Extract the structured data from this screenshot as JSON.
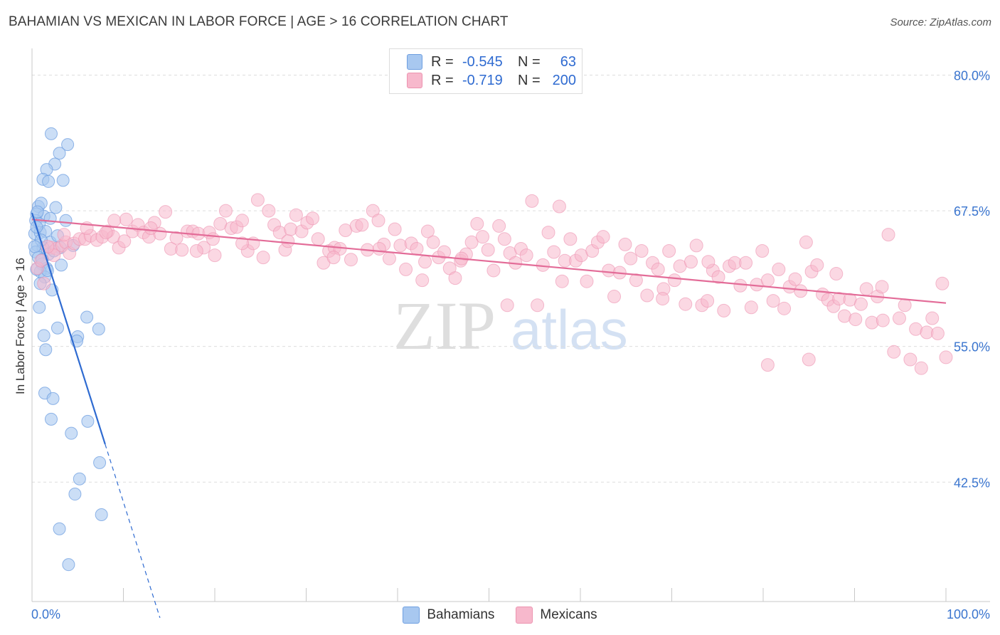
{
  "title": "BAHAMIAN VS MEXICAN IN LABOR FORCE | AGE > 16 CORRELATION CHART",
  "source": "Source: ZipAtlas.com",
  "watermark": {
    "zip": "ZIP",
    "atlas": "atlas"
  },
  "legend": {
    "rows": [
      {
        "r_label": "R =",
        "r_value": "-0.545",
        "n_label": "N =",
        "n_value": "63",
        "color": "#a8c8f0"
      },
      {
        "r_label": "R =",
        "r_value": "-0.719",
        "n_label": "N =",
        "n_value": "200",
        "color": "#f7b8cc"
      }
    ]
  },
  "bottom_legend": {
    "bahamians": "Bahamians",
    "mexicans": "Mexicans"
  },
  "colors": {
    "blue_fill": "#a8c8f0",
    "blue_stroke": "#6f9fe0",
    "blue_line": "#2f6bd1",
    "pink_fill": "#f7b8cc",
    "pink_stroke": "#ec93b0",
    "pink_line": "#e36c98",
    "tick_text": "#3a75cf"
  },
  "chart_data": {
    "type": "scatter",
    "title": "BAHAMIAN VS MEXICAN IN LABOR FORCE | AGE > 16 CORRELATION CHART",
    "xlabel": "",
    "ylabel": "In Labor Force | Age > 16",
    "xlim": [
      0,
      100
    ],
    "ylim": [
      31.5,
      82
    ],
    "x_tick_labels": [
      "0.0%",
      "100.0%"
    ],
    "y_ticks": [
      42.5,
      55.0,
      67.5,
      80.0
    ],
    "y_tick_labels": [
      "42.5%",
      "55.0%",
      "67.5%",
      "80.0%"
    ],
    "grid": "horizontal dashed",
    "legend_position": "top-center",
    "series": [
      {
        "name": "Bahamians",
        "R": -0.545,
        "N": 63,
        "points": [
          [
            2.1,
            74.6
          ],
          [
            3.9,
            73.6
          ],
          [
            3.0,
            72.8
          ],
          [
            2.5,
            71.8
          ],
          [
            1.6,
            71.3
          ],
          [
            1.2,
            70.4
          ],
          [
            1.8,
            70.2
          ],
          [
            3.4,
            70.3
          ],
          [
            0.7,
            67.9
          ],
          [
            1.0,
            68.2
          ],
          [
            2.6,
            67.8
          ],
          [
            0.5,
            67.2
          ],
          [
            1.3,
            67.0
          ],
          [
            0.4,
            66.6
          ],
          [
            0.8,
            66.3
          ],
          [
            2.0,
            66.8
          ],
          [
            3.7,
            66.6
          ],
          [
            0.3,
            65.4
          ],
          [
            0.9,
            65.5
          ],
          [
            1.5,
            65.6
          ],
          [
            2.0,
            64.6
          ],
          [
            0.6,
            64.3
          ],
          [
            1.2,
            64.1
          ],
          [
            0.4,
            63.7
          ],
          [
            1.8,
            63.5
          ],
          [
            3.1,
            64.1
          ],
          [
            4.5,
            64.3
          ],
          [
            0.7,
            63.2
          ],
          [
            1.1,
            62.6
          ],
          [
            1.6,
            62.2
          ],
          [
            0.9,
            61.9
          ],
          [
            3.2,
            62.5
          ],
          [
            1.4,
            61.4
          ],
          [
            2.2,
            60.2
          ],
          [
            0.9,
            60.8
          ],
          [
            0.8,
            58.6
          ],
          [
            6.0,
            57.7
          ],
          [
            2.8,
            56.7
          ],
          [
            7.3,
            56.6
          ],
          [
            1.3,
            56.0
          ],
          [
            5.0,
            55.9
          ],
          [
            4.9,
            55.5
          ],
          [
            1.5,
            54.7
          ],
          [
            1.4,
            50.7
          ],
          [
            2.3,
            50.2
          ],
          [
            2.1,
            48.3
          ],
          [
            6.1,
            48.1
          ],
          [
            4.3,
            47.0
          ],
          [
            7.4,
            44.3
          ],
          [
            5.2,
            42.8
          ],
          [
            4.7,
            41.4
          ],
          [
            7.6,
            39.5
          ],
          [
            3.0,
            38.2
          ],
          [
            4.0,
            34.9
          ],
          [
            0.5,
            66.0
          ],
          [
            1.0,
            64.8
          ],
          [
            2.4,
            63.8
          ],
          [
            0.6,
            67.4
          ],
          [
            1.7,
            62.0
          ],
          [
            0.3,
            64.2
          ],
          [
            2.8,
            65.2
          ],
          [
            1.1,
            63.0
          ],
          [
            0.5,
            62.1
          ]
        ],
        "trend": {
          "x0": 0,
          "y0": 67.3,
          "x1": 8.0,
          "y1": 46.0,
          "dash_to_x": 14.0,
          "dash_to_y": 30.0
        }
      },
      {
        "name": "Mexicans",
        "R": -0.719,
        "N": 200,
        "points": [
          [
            0.6,
            62.2
          ],
          [
            1.0,
            62.9
          ],
          [
            1.3,
            60.8
          ],
          [
            2.1,
            64.1
          ],
          [
            2.7,
            64.0
          ],
          [
            3.3,
            64.3
          ],
          [
            3.7,
            64.6
          ],
          [
            4.1,
            63.6
          ],
          [
            4.6,
            64.5
          ],
          [
            5.2,
            64.9
          ],
          [
            5.8,
            64.9
          ],
          [
            6.4,
            65.2
          ],
          [
            7.1,
            64.8
          ],
          [
            7.7,
            65.1
          ],
          [
            8.3,
            65.6
          ],
          [
            8.9,
            65.1
          ],
          [
            9.5,
            64.1
          ],
          [
            10.1,
            64.7
          ],
          [
            10.3,
            66.7
          ],
          [
            11.0,
            65.6
          ],
          [
            11.6,
            66.2
          ],
          [
            12.2,
            65.5
          ],
          [
            12.8,
            65.1
          ],
          [
            13.4,
            66.4
          ],
          [
            14.0,
            65.4
          ],
          [
            14.6,
            67.4
          ],
          [
            15.2,
            64.0
          ],
          [
            15.8,
            65.0
          ],
          [
            16.4,
            63.9
          ],
          [
            17.0,
            65.6
          ],
          [
            17.6,
            65.6
          ],
          [
            18.2,
            65.4
          ],
          [
            18.8,
            64.1
          ],
          [
            19.4,
            65.5
          ],
          [
            20.0,
            63.4
          ],
          [
            20.6,
            66.3
          ],
          [
            21.2,
            67.5
          ],
          [
            21.8,
            65.9
          ],
          [
            22.4,
            66.0
          ],
          [
            23.0,
            66.6
          ],
          [
            23.6,
            63.8
          ],
          [
            24.2,
            64.5
          ],
          [
            24.7,
            68.5
          ],
          [
            25.3,
            63.2
          ],
          [
            25.9,
            67.5
          ],
          [
            26.5,
            66.2
          ],
          [
            27.1,
            65.5
          ],
          [
            27.7,
            63.9
          ],
          [
            28.3,
            65.8
          ],
          [
            28.9,
            67.1
          ],
          [
            29.5,
            65.6
          ],
          [
            30.1,
            66.4
          ],
          [
            30.7,
            66.8
          ],
          [
            31.3,
            64.9
          ],
          [
            31.9,
            62.7
          ],
          [
            32.5,
            63.8
          ],
          [
            33.1,
            64.1
          ],
          [
            33.7,
            64.0
          ],
          [
            34.3,
            65.7
          ],
          [
            34.9,
            63.0
          ],
          [
            35.5,
            66.1
          ],
          [
            36.1,
            66.2
          ],
          [
            36.7,
            63.9
          ],
          [
            37.3,
            67.5
          ],
          [
            37.9,
            66.6
          ],
          [
            38.5,
            64.4
          ],
          [
            39.1,
            63.1
          ],
          [
            39.7,
            65.8
          ],
          [
            40.3,
            64.3
          ],
          [
            40.9,
            62.1
          ],
          [
            41.5,
            64.5
          ],
          [
            42.1,
            64.0
          ],
          [
            42.7,
            61.1
          ],
          [
            43.3,
            65.6
          ],
          [
            43.9,
            64.6
          ],
          [
            44.5,
            63.2
          ],
          [
            45.1,
            63.7
          ],
          [
            45.7,
            62.2
          ],
          [
            46.3,
            61.3
          ],
          [
            46.9,
            62.9
          ],
          [
            47.5,
            63.5
          ],
          [
            48.1,
            64.6
          ],
          [
            48.7,
            66.3
          ],
          [
            49.3,
            65.1
          ],
          [
            49.9,
            63.9
          ],
          [
            50.5,
            62.0
          ],
          [
            51.1,
            66.1
          ],
          [
            51.7,
            64.9
          ],
          [
            52.3,
            63.6
          ],
          [
            52.9,
            62.7
          ],
          [
            53.5,
            64.0
          ],
          [
            54.1,
            63.4
          ],
          [
            54.7,
            68.4
          ],
          [
            55.3,
            58.8
          ],
          [
            55.9,
            62.5
          ],
          [
            56.5,
            65.5
          ],
          [
            57.1,
            63.7
          ],
          [
            57.7,
            67.9
          ],
          [
            58.3,
            62.9
          ],
          [
            58.9,
            64.9
          ],
          [
            59.5,
            62.9
          ],
          [
            60.1,
            63.4
          ],
          [
            60.7,
            61.0
          ],
          [
            61.3,
            63.8
          ],
          [
            61.9,
            64.6
          ],
          [
            62.5,
            65.1
          ],
          [
            63.1,
            62.0
          ],
          [
            63.7,
            59.6
          ],
          [
            64.3,
            61.8
          ],
          [
            64.9,
            64.4
          ],
          [
            65.5,
            63.1
          ],
          [
            66.1,
            61.1
          ],
          [
            66.7,
            63.8
          ],
          [
            67.3,
            59.7
          ],
          [
            67.9,
            62.7
          ],
          [
            68.5,
            62.1
          ],
          [
            69.1,
            60.3
          ],
          [
            69.7,
            63.8
          ],
          [
            70.3,
            61.1
          ],
          [
            70.9,
            62.4
          ],
          [
            71.5,
            58.9
          ],
          [
            72.1,
            62.8
          ],
          [
            72.7,
            64.3
          ],
          [
            73.3,
            58.8
          ],
          [
            73.9,
            59.2
          ],
          [
            74.5,
            62.0
          ],
          [
            75.1,
            61.4
          ],
          [
            75.7,
            58.3
          ],
          [
            76.3,
            62.4
          ],
          [
            76.9,
            62.7
          ],
          [
            77.5,
            60.6
          ],
          [
            78.1,
            62.7
          ],
          [
            78.7,
            58.6
          ],
          [
            79.3,
            60.7
          ],
          [
            79.9,
            63.8
          ],
          [
            80.5,
            61.1
          ],
          [
            81.1,
            59.2
          ],
          [
            81.7,
            62.1
          ],
          [
            82.3,
            58.5
          ],
          [
            82.9,
            60.5
          ],
          [
            83.5,
            61.2
          ],
          [
            84.1,
            60.1
          ],
          [
            84.7,
            64.6
          ],
          [
            85.3,
            61.9
          ],
          [
            85.9,
            62.5
          ],
          [
            86.5,
            59.8
          ],
          [
            87.1,
            59.3
          ],
          [
            87.7,
            58.7
          ],
          [
            88.3,
            59.4
          ],
          [
            88.9,
            57.8
          ],
          [
            89.5,
            59.3
          ],
          [
            90.1,
            57.5
          ],
          [
            90.7,
            58.9
          ],
          [
            91.3,
            60.3
          ],
          [
            91.9,
            57.2
          ],
          [
            92.5,
            59.6
          ],
          [
            93.1,
            57.4
          ],
          [
            93.7,
            65.3
          ],
          [
            94.3,
            54.5
          ],
          [
            94.9,
            57.6
          ],
          [
            95.5,
            58.8
          ],
          [
            96.1,
            53.8
          ],
          [
            96.7,
            56.6
          ],
          [
            97.3,
            53.0
          ],
          [
            97.9,
            56.3
          ],
          [
            98.5,
            57.6
          ],
          [
            99.1,
            56.2
          ],
          [
            99.6,
            60.8
          ],
          [
            100.0,
            54.0
          ],
          [
            80.5,
            53.3
          ],
          [
            85.0,
            53.8
          ],
          [
            93.0,
            60.5
          ],
          [
            88.0,
            61.7
          ],
          [
            74.0,
            62.8
          ],
          [
            69.0,
            59.4
          ],
          [
            58.0,
            61.0
          ],
          [
            52.0,
            58.8
          ],
          [
            47.0,
            63.1
          ],
          [
            43.0,
            62.8
          ],
          [
            38.0,
            64.0
          ],
          [
            33.0,
            63.2
          ],
          [
            28.0,
            64.7
          ],
          [
            23.0,
            64.5
          ],
          [
            18.0,
            63.8
          ],
          [
            13.0,
            65.9
          ],
          [
            9.0,
            66.6
          ],
          [
            6.0,
            65.9
          ],
          [
            3.5,
            65.3
          ],
          [
            2.4,
            63.4
          ],
          [
            1.7,
            64.2
          ],
          [
            8.1,
            65.5
          ],
          [
            19.8,
            64.9
          ]
        ],
        "trend": {
          "x0": 0,
          "y0": 66.7,
          "x1": 100,
          "y1": 59.0
        }
      }
    ]
  }
}
